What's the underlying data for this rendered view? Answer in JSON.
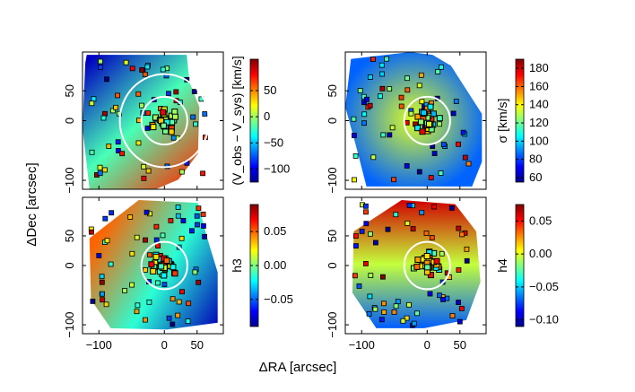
{
  "figure": {
    "xlabel": "ΔRA [arcsec]",
    "ylabel": "ΔDec [arcsec]"
  },
  "colors": {
    "axis": "#000000",
    "ellipse": "#ffffff",
    "background": "#ffffff"
  },
  "chart_data": [
    {
      "type": "heatmap",
      "panel": "top-left",
      "quantity": "velocity",
      "cbar_label": "(V_obs − V_sys) [km/s]",
      "cbar_range": [
        -125,
        110
      ],
      "cbar_ticks": [
        {
          "v": 50,
          "t": "50"
        },
        {
          "v": 0,
          "t": "0"
        },
        {
          "v": -50,
          "t": "−50"
        },
        {
          "v": -100,
          "t": "−100"
        }
      ],
      "xlim": [
        -125,
        90
      ],
      "ylim": [
        -115,
        115
      ],
      "xticks": [
        {
          "v": -100,
          "t": "−100"
        },
        {
          "v": 0,
          "t": "0"
        },
        {
          "v": 50,
          "t": "50"
        }
      ],
      "yticks": [
        {
          "v": 50,
          "t": "50"
        },
        {
          "v": 0,
          "t": "0"
        },
        {
          "v": -100,
          "t": "−100"
        }
      ],
      "show_xticklabels": false,
      "show_yticklabels": true,
      "field_gradient": {
        "from": "upper-left",
        "to": "lower-right",
        "low_value": -110,
        "high_value": 70
      },
      "ellipses_arcsec": [
        {
          "rx": 35,
          "ry": 40
        },
        {
          "rx": 68,
          "ry": 78
        }
      ]
    },
    {
      "type": "heatmap",
      "panel": "top-right",
      "quantity": "dispersion",
      "cbar_label": "σ [km/s]",
      "cbar_range": [
        55,
        190
      ],
      "cbar_ticks": [
        {
          "v": 180,
          "t": "180"
        },
        {
          "v": 160,
          "t": "160"
        },
        {
          "v": 140,
          "t": "140"
        },
        {
          "v": 120,
          "t": "120"
        },
        {
          "v": 100,
          "t": "100"
        },
        {
          "v": 80,
          "t": "80"
        },
        {
          "v": 60,
          "t": "60"
        }
      ],
      "xlim": [
        -125,
        90
      ],
      "ylim": [
        -115,
        115
      ],
      "xticks": [
        {
          "v": -100,
          "t": "−100"
        },
        {
          "v": 0,
          "t": "0"
        },
        {
          "v": 50,
          "t": "50"
        }
      ],
      "yticks": [
        {
          "v": 50,
          "t": "50"
        },
        {
          "v": 0,
          "t": "0"
        },
        {
          "v": -100,
          "t": "−100"
        }
      ],
      "show_xticklabels": false,
      "show_yticklabels": true,
      "field_gradient": {
        "from": "outer",
        "to": "center",
        "low_value": 85,
        "high_value": 135
      },
      "ellipses_arcsec": [
        {
          "rx": 35,
          "ry": 40
        }
      ]
    },
    {
      "type": "heatmap",
      "panel": "bottom-left",
      "quantity": "h3",
      "cbar_label": "h3",
      "cbar_range": [
        -0.09,
        0.09
      ],
      "cbar_ticks": [
        {
          "v": 0.05,
          "t": "0.05"
        },
        {
          "v": 0,
          "t": "0.00"
        },
        {
          "v": -0.05,
          "t": "−0.05"
        }
      ],
      "xlim": [
        -125,
        90
      ],
      "ylim": [
        -115,
        115
      ],
      "xticks": [
        {
          "v": -100,
          "t": "−100"
        },
        {
          "v": 0,
          "t": "0"
        },
        {
          "v": 50,
          "t": "50"
        }
      ],
      "yticks": [
        {
          "v": 50,
          "t": "50"
        },
        {
          "v": 0,
          "t": "0"
        },
        {
          "v": -100,
          "t": "−100"
        }
      ],
      "show_xticklabels": true,
      "show_yticklabels": true,
      "field_gradient": {
        "from": "left",
        "to": "lower-right",
        "low_value": 0.05,
        "high_value": -0.08
      },
      "ellipses_arcsec": [
        {
          "rx": 35,
          "ry": 40
        }
      ]
    },
    {
      "type": "heatmap",
      "panel": "bottom-right",
      "quantity": "h4",
      "cbar_label": "h4",
      "cbar_range": [
        -0.11,
        0.075
      ],
      "cbar_ticks": [
        {
          "v": 0.05,
          "t": "0.05"
        },
        {
          "v": 0,
          "t": "0.00"
        },
        {
          "v": -0.05,
          "t": "−0.05"
        },
        {
          "v": -0.1,
          "t": "−0.10"
        }
      ],
      "xlim": [
        -125,
        90
      ],
      "ylim": [
        -115,
        115
      ],
      "xticks": [
        {
          "v": -100,
          "t": "−100"
        },
        {
          "v": 0,
          "t": "0"
        },
        {
          "v": 50,
          "t": "50"
        }
      ],
      "yticks": [
        {
          "v": 50,
          "t": "50"
        },
        {
          "v": 0,
          "t": "0"
        },
        {
          "v": -100,
          "t": "−100"
        }
      ],
      "show_xticklabels": true,
      "show_yticklabels": true,
      "field_gradient": {
        "from": "top",
        "to": "bottom",
        "low_value": 0.06,
        "high_value": -0.07
      },
      "ellipses_arcsec": [
        {
          "rx": 35,
          "ry": 40
        }
      ]
    }
  ]
}
